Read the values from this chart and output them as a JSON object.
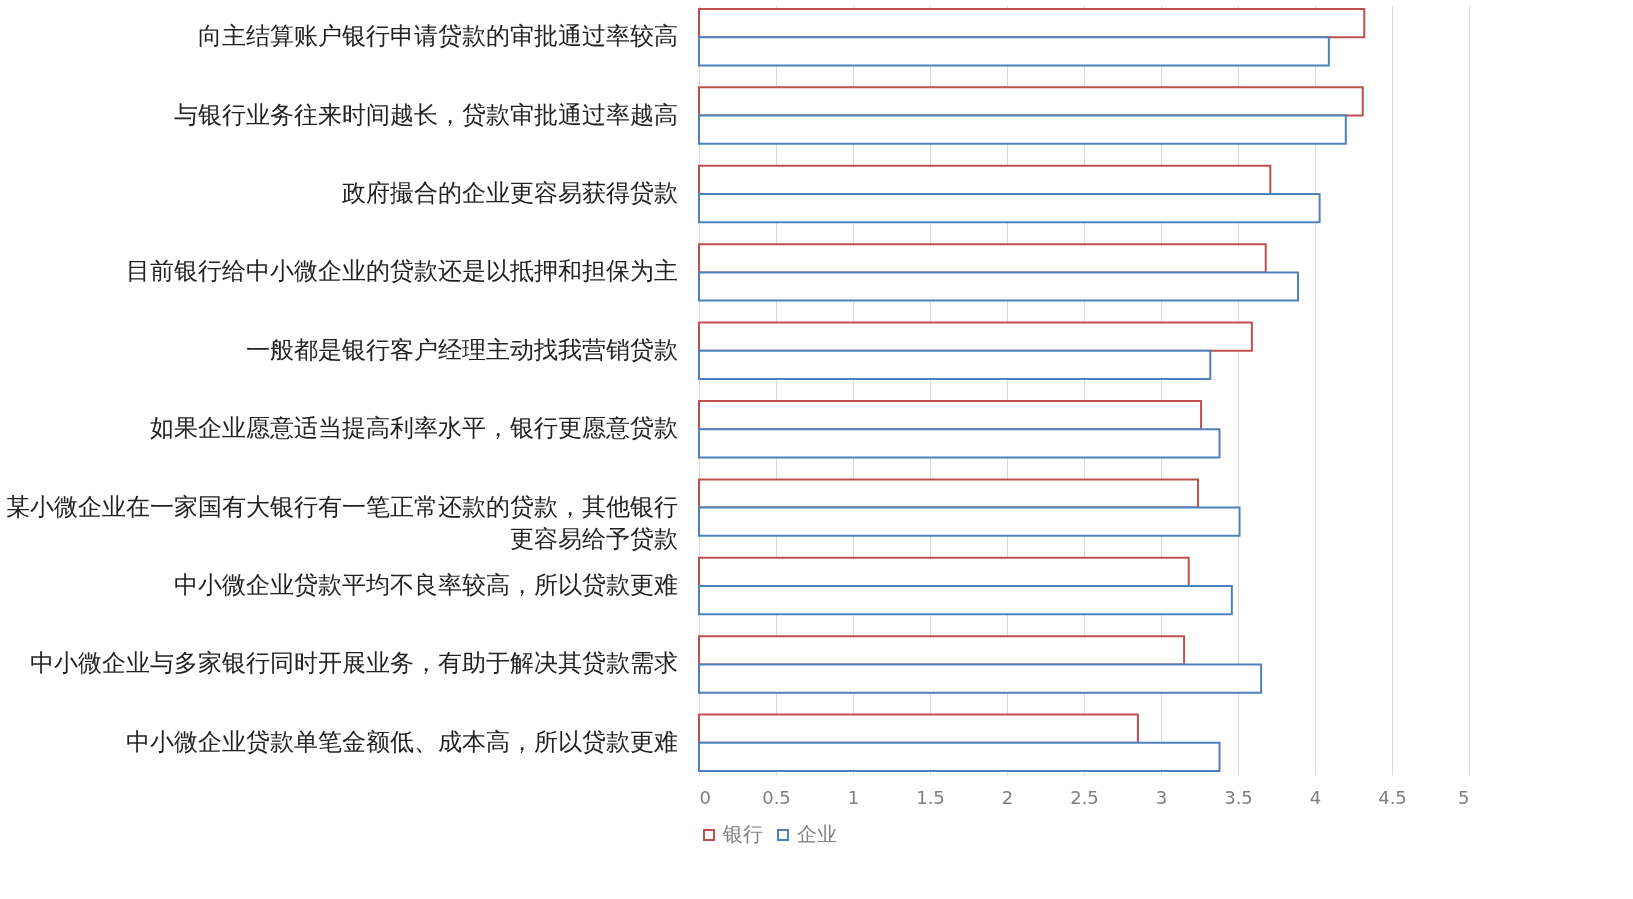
{
  "chart_data": {
    "type": "bar",
    "orientation": "horizontal",
    "categories": [
      "向主结算账户银行申请贷款的审批通过率较高",
      "与银行业务往来时间越长，贷款审批通过率越高",
      "政府撮合的企业更容易获得贷款",
      "目前银行给中小微企业的贷款还是以抵押和担保为主",
      "一般都是银行客户经理主动找我营销贷款",
      "如果企业愿意适当提高利率水平，银行更愿意贷款",
      "某小微企业在一家国有大银行有一笔正常还款的贷款，其他银行更容易给予贷款",
      "中小微企业贷款平均不良率较高，所以贷款更难",
      "中小微企业与多家银行同时开展业务，有助于解决其贷款需求",
      "中小微企业贷款单笔金额低、成本高，所以贷款更难"
    ],
    "series": [
      {
        "name": "银行",
        "color": "#c0504d",
        "values": [
          4.32,
          4.31,
          3.71,
          3.68,
          3.59,
          3.26,
          3.24,
          3.18,
          3.15,
          2.85
        ]
      },
      {
        "name": "企业",
        "color": "#4f81bd",
        "values": [
          4.09,
          4.2,
          4.03,
          3.89,
          3.32,
          3.38,
          3.51,
          3.46,
          3.65,
          3.38
        ]
      }
    ],
    "xlim": [
      0,
      5
    ],
    "xticks": [
      0,
      0.5,
      1,
      1.5,
      2,
      2.5,
      3,
      3.5,
      4,
      4.5,
      5
    ],
    "grid": "x",
    "legend": "bottom"
  }
}
